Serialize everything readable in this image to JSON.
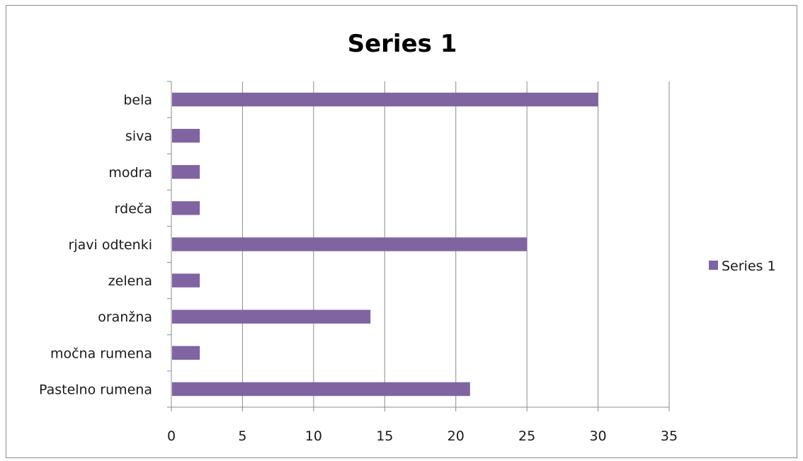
{
  "chart_data": {
    "type": "bar",
    "orientation": "horizontal",
    "title": "Series 1",
    "xlabel": "",
    "ylabel": "",
    "categories": [
      "Pastelno rumena",
      "močna rumena",
      "oranžna",
      "zelena",
      "rjavi odtenki",
      "rdeča",
      "modra",
      "siva",
      "bela"
    ],
    "series": [
      {
        "name": "Series 1",
        "color": "#8064a2",
        "values": [
          21,
          2,
          14,
          2,
          25,
          2,
          2,
          2,
          30
        ]
      }
    ],
    "xlim": [
      0,
      35
    ],
    "ticks": [
      0,
      5,
      10,
      15,
      20,
      25,
      30,
      35
    ],
    "grid": "vertical",
    "legend": "right"
  }
}
